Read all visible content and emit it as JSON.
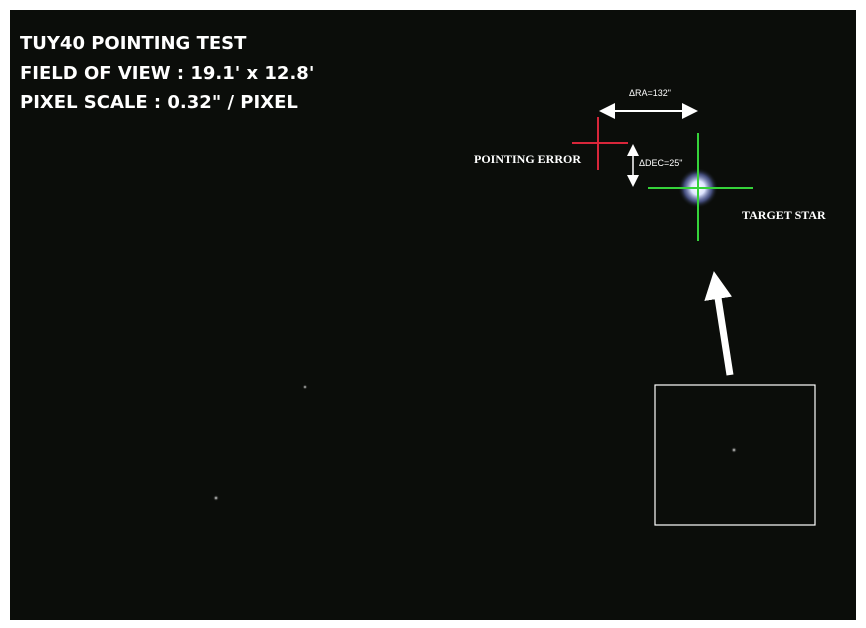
{
  "header": {
    "lines": [
      "TUY40 POINTING TEST",
      "FIELD OF VIEW : 19.1' x 12.8'",
      "PIXEL SCALE : 0.32\" / PIXEL"
    ]
  },
  "annotations": {
    "delta_ra": "ΔRA=132\"",
    "delta_dec": "ΔDEC=25\"",
    "pointing_error": "POINTING ERROR",
    "target_star": "TARGET STAR"
  }
}
